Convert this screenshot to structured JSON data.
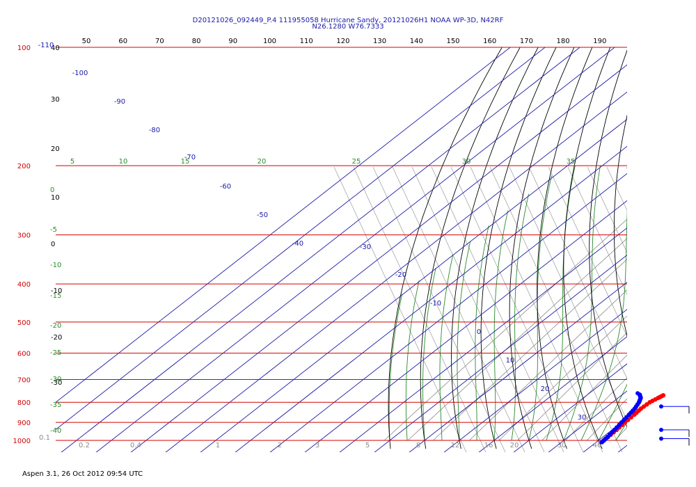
{
  "header": {
    "title_line1": "D20121026_092449_P.4 111955058 Hurricane Sandy, 20121026H1 NOAA WP-3D, N42RF",
    "title_line2": "N26.1280 W76.7333"
  },
  "footer": {
    "text": "Aspen 3.1, 26 Oct 2012  09:54 UTC"
  },
  "colors": {
    "pressure_lines": "#d40000",
    "isotherms": "#1a1aa8",
    "dry_adiabats": "#000000",
    "moist_adiabats": "#2a8a2a",
    "mixing_ratio": "#8a8a8a",
    "temperature_trace": "#ff0000",
    "dewpoint_trace": "#0000ff"
  },
  "chart_data": {
    "type": "skew-t log-p",
    "y_axis": {
      "scale": "log",
      "quantity": "pressure",
      "ticks": [
        100,
        200,
        300,
        400,
        500,
        600,
        700,
        800,
        900,
        1000
      ],
      "range": [
        100,
        1000
      ]
    },
    "top_ticks": [
      50,
      60,
      70,
      80,
      90,
      100,
      110,
      120,
      130,
      140,
      150,
      160,
      170,
      180,
      190
    ],
    "left_dry_labels": [
      "40",
      "30",
      "20",
      "10",
      "0",
      "-10",
      "-20",
      "-30"
    ],
    "left_moist_labels": [
      "0",
      "-5",
      "-10",
      "-15",
      "-20",
      "-25",
      "-30",
      "-35",
      "-40"
    ],
    "isotherm_labels": [
      "-110",
      "-100",
      "-90",
      "-80",
      "-70",
      "-60",
      "-50",
      "-40",
      "-30",
      "-20",
      "-10",
      "0",
      "10",
      "20",
      "30"
    ],
    "moist_top_labels": [
      "5",
      "10",
      "15",
      "20",
      "25",
      "30",
      "35"
    ],
    "bottom_mixing_labels": [
      "0.1",
      "0.2",
      "0.4",
      "1",
      "2",
      "3",
      "5",
      "8",
      "12",
      "16",
      "20",
      "30",
      "40"
    ],
    "series": [
      {
        "name": "temperature",
        "p": [
          768,
          780,
          800,
          830,
          860,
          900,
          940,
          980,
          1010
        ],
        "t": [
          22,
          21.5,
          20.7,
          20.5,
          20.8,
          21.0,
          21.3,
          21.5,
          21.6
        ]
      },
      {
        "name": "dewpoint",
        "p": [
          765,
          780,
          800,
          830,
          860,
          900,
          940,
          980,
          1010
        ],
        "t": [
          15,
          16.5,
          17.6,
          18.7,
          19.3,
          20.0,
          20.7,
          21.3,
          21.6
        ]
      }
    ],
    "wind_barbs": [
      {
        "p": 820
      },
      {
        "p": 940
      },
      {
        "p": 990
      }
    ]
  }
}
